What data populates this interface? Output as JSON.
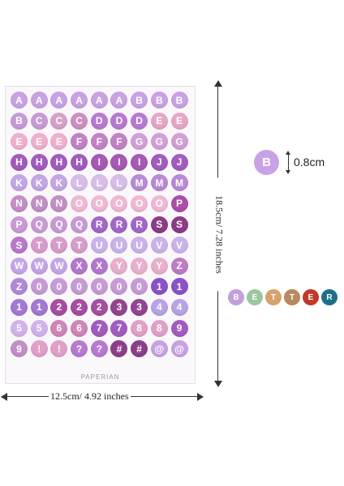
{
  "sheet": {
    "brand": "PAPERIAN",
    "stickers": [
      {
        "l": "A",
        "c": "#c8a3e3"
      },
      {
        "l": "A",
        "c": "#c8a3e3"
      },
      {
        "l": "A",
        "c": "#c8a3e3"
      },
      {
        "l": "A",
        "c": "#c8a3e3"
      },
      {
        "l": "A",
        "c": "#c8a3e3"
      },
      {
        "l": "A",
        "c": "#c8a3e3"
      },
      {
        "l": "B",
        "c": "#c8a3e3"
      },
      {
        "l": "B",
        "c": "#c8a3e3"
      },
      {
        "l": "B",
        "c": "#c8a3e3"
      },
      {
        "l": "B",
        "c": "#c79bd6"
      },
      {
        "l": "C",
        "c": "#c79bd6"
      },
      {
        "l": "C",
        "c": "#d7a2c9"
      },
      {
        "l": "C",
        "c": "#cf8fc2"
      },
      {
        "l": "D",
        "c": "#b77ad1"
      },
      {
        "l": "D",
        "c": "#b77ad1"
      },
      {
        "l": "D",
        "c": "#b77ad1"
      },
      {
        "l": "E",
        "c": "#e6a7c6"
      },
      {
        "l": "E",
        "c": "#e6a7c6"
      },
      {
        "l": "E",
        "c": "#efb0cd"
      },
      {
        "l": "E",
        "c": "#efb0cd"
      },
      {
        "l": "E",
        "c": "#efb0cd"
      },
      {
        "l": "F",
        "c": "#c183c6"
      },
      {
        "l": "F",
        "c": "#c183c6"
      },
      {
        "l": "F",
        "c": "#c183c6"
      },
      {
        "l": "G",
        "c": "#d2a0d8"
      },
      {
        "l": "G",
        "c": "#d2a0d8"
      },
      {
        "l": "G",
        "c": "#d2a0d8"
      },
      {
        "l": "H",
        "c": "#a25cbf"
      },
      {
        "l": "H",
        "c": "#a25cbf"
      },
      {
        "l": "H",
        "c": "#a25cbf"
      },
      {
        "l": "H",
        "c": "#a25cbf"
      },
      {
        "l": "I",
        "c": "#a65ab4"
      },
      {
        "l": "I",
        "c": "#a65ab4"
      },
      {
        "l": "I",
        "c": "#a65ab4"
      },
      {
        "l": "J",
        "c": "#a25cbf"
      },
      {
        "l": "J",
        "c": "#a25cbf"
      },
      {
        "l": "K",
        "c": "#c4a6e6"
      },
      {
        "l": "K",
        "c": "#c4a6e6"
      },
      {
        "l": "K",
        "c": "#c4a6e6"
      },
      {
        "l": "L",
        "c": "#d8bde8"
      },
      {
        "l": "L",
        "c": "#d8bde8"
      },
      {
        "l": "L",
        "c": "#d8bde8"
      },
      {
        "l": "M",
        "c": "#b98ad6"
      },
      {
        "l": "M",
        "c": "#b98ad6"
      },
      {
        "l": "M",
        "c": "#b98ad6"
      },
      {
        "l": "N",
        "c": "#c28fc6"
      },
      {
        "l": "N",
        "c": "#c28fc6"
      },
      {
        "l": "N",
        "c": "#c28fc6"
      },
      {
        "l": "O",
        "c": "#efb9d5"
      },
      {
        "l": "O",
        "c": "#efb9d5"
      },
      {
        "l": "O",
        "c": "#efb9d5"
      },
      {
        "l": "O",
        "c": "#efb9d5"
      },
      {
        "l": "O",
        "c": "#efb9d5"
      },
      {
        "l": "P",
        "c": "#a94fa6"
      },
      {
        "l": "P",
        "c": "#c89ad6"
      },
      {
        "l": "Q",
        "c": "#c89ad6"
      },
      {
        "l": "Q",
        "c": "#c89ad6"
      },
      {
        "l": "Q",
        "c": "#c89ad6"
      },
      {
        "l": "R",
        "c": "#a367c8"
      },
      {
        "l": "R",
        "c": "#a367c8"
      },
      {
        "l": "R",
        "c": "#a367c8"
      },
      {
        "l": "S",
        "c": "#8e3c86"
      },
      {
        "l": "S",
        "c": "#8e3c86"
      },
      {
        "l": "S",
        "c": "#b779cc"
      },
      {
        "l": "T",
        "c": "#d79ccc"
      },
      {
        "l": "T",
        "c": "#d79ccc"
      },
      {
        "l": "T",
        "c": "#d79ccc"
      },
      {
        "l": "U",
        "c": "#c9b4ea"
      },
      {
        "l": "U",
        "c": "#c9b4ea"
      },
      {
        "l": "U",
        "c": "#c9b4ea"
      },
      {
        "l": "V",
        "c": "#c9b4ea"
      },
      {
        "l": "V",
        "c": "#c9b4ea"
      },
      {
        "l": "W",
        "c": "#c4a6e6"
      },
      {
        "l": "W",
        "c": "#c4a6e6"
      },
      {
        "l": "W",
        "c": "#c4a6e6"
      },
      {
        "l": "X",
        "c": "#b378cd"
      },
      {
        "l": "X",
        "c": "#b378cd"
      },
      {
        "l": "Y",
        "c": "#e8b0cd"
      },
      {
        "l": "Y",
        "c": "#e8b0cd"
      },
      {
        "l": "Y",
        "c": "#e8b0cd"
      },
      {
        "l": "Z",
        "c": "#bd7cc4"
      },
      {
        "l": "Z",
        "c": "#b089d8"
      },
      {
        "l": "0",
        "c": "#c79bd6"
      },
      {
        "l": "0",
        "c": "#c79bd6"
      },
      {
        "l": "0",
        "c": "#c79bd6"
      },
      {
        "l": "0",
        "c": "#c79bd6"
      },
      {
        "l": "0",
        "c": "#c79bd6"
      },
      {
        "l": "0",
        "c": "#c79bd6"
      },
      {
        "l": "1",
        "c": "#8b52c8"
      },
      {
        "l": "1",
        "c": "#8b52c8"
      },
      {
        "l": "1",
        "c": "#a478d3"
      },
      {
        "l": "1",
        "c": "#a478d3"
      },
      {
        "l": "2",
        "c": "#a64ea0"
      },
      {
        "l": "2",
        "c": "#a64ea0"
      },
      {
        "l": "2",
        "c": "#a64ea0"
      },
      {
        "l": "3",
        "c": "#93468f"
      },
      {
        "l": "3",
        "c": "#93468f"
      },
      {
        "l": "4",
        "c": "#b7a4e4"
      },
      {
        "l": "4",
        "c": "#b7a4e4"
      },
      {
        "l": "5",
        "c": "#d2b2ea"
      },
      {
        "l": "5",
        "c": "#d2b2ea"
      },
      {
        "l": "6",
        "c": "#cf86b8"
      },
      {
        "l": "6",
        "c": "#cf86b8"
      },
      {
        "l": "7",
        "c": "#a25cbf"
      },
      {
        "l": "7",
        "c": "#a25cbf"
      },
      {
        "l": "8",
        "c": "#e0a1c8"
      },
      {
        "l": "8",
        "c": "#e0a1c8"
      },
      {
        "l": "9",
        "c": "#a25cbf"
      },
      {
        "l": "9",
        "c": "#c28fc6"
      },
      {
        "l": "!",
        "c": "#e0a1c8"
      },
      {
        "l": "!",
        "c": "#e0a1c8"
      },
      {
        "l": "?",
        "c": "#b77ad1"
      },
      {
        "l": "?",
        "c": "#b77ad1"
      },
      {
        "l": "#",
        "c": "#8c3f89"
      },
      {
        "l": "#",
        "c": "#8c3f89"
      },
      {
        "l": "@",
        "c": "#c8a3e3"
      },
      {
        "l": "@",
        "c": "#c8a3e3"
      }
    ]
  },
  "dimensions": {
    "height_label": "18.5cm/ 7.28 inches",
    "width_label": "12.5cm/ 4.92 inches",
    "sticker_size_label": "0.8cm"
  },
  "sample": {
    "letter": "B",
    "color": "#c9a2e6"
  },
  "better": [
    {
      "l": "B",
      "c": "#c49fdc"
    },
    {
      "l": "E",
      "c": "#9bc7a0"
    },
    {
      "l": "T",
      "c": "#d6a26b"
    },
    {
      "l": "T",
      "c": "#b9895f"
    },
    {
      "l": "E",
      "c": "#c0392b"
    },
    {
      "l": "R",
      "c": "#1f6f8b"
    }
  ]
}
